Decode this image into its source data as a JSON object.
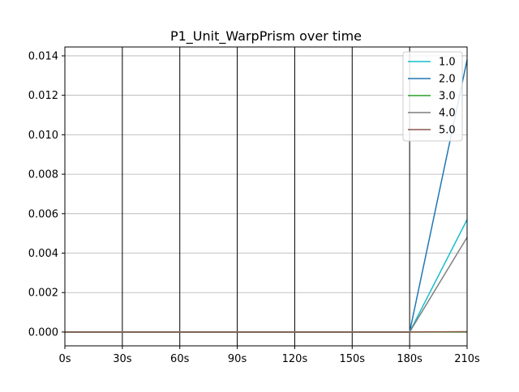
{
  "chart_data": {
    "type": "line",
    "title": "P1_Unit_WarpPrism over time",
    "xlabel": "",
    "ylabel": "",
    "x": [
      0,
      30,
      60,
      90,
      120,
      150,
      180,
      210
    ],
    "x_tick_labels": [
      "0s",
      "30s",
      "60s",
      "90s",
      "120s",
      "150s",
      "180s",
      "210s"
    ],
    "xlim": [
      0,
      210
    ],
    "ylim": [
      -0.0007,
      0.01445
    ],
    "y_ticks": [
      0.0,
      0.002,
      0.004,
      0.006,
      0.008,
      0.01,
      0.012,
      0.014
    ],
    "y_tick_labels": [
      "0.000",
      "0.002",
      "0.004",
      "0.006",
      "0.008",
      "0.010",
      "0.012",
      "0.014"
    ],
    "grid": {
      "horizontal": true,
      "vertical": true
    },
    "legend_position": "top-right",
    "series": [
      {
        "name": "1.0",
        "color": "#17becf",
        "values": [
          0,
          0,
          0,
          0,
          0,
          0,
          0,
          0.0057
        ]
      },
      {
        "name": "2.0",
        "color": "#1f77b4",
        "values": [
          0,
          0,
          0,
          0,
          0,
          0,
          0,
          0.0138
        ]
      },
      {
        "name": "3.0",
        "color": "#2ca02c",
        "values": [
          0,
          0,
          0,
          0,
          0,
          0,
          0,
          0
        ]
      },
      {
        "name": "4.0",
        "color": "#7f7f7f",
        "values": [
          0,
          0,
          0,
          0,
          0,
          0,
          0,
          0.0048
        ]
      },
      {
        "name": "5.0",
        "color": "#8c564b",
        "values": [
          0,
          0,
          0,
          0,
          0,
          0,
          0,
          2e-05
        ]
      }
    ]
  }
}
